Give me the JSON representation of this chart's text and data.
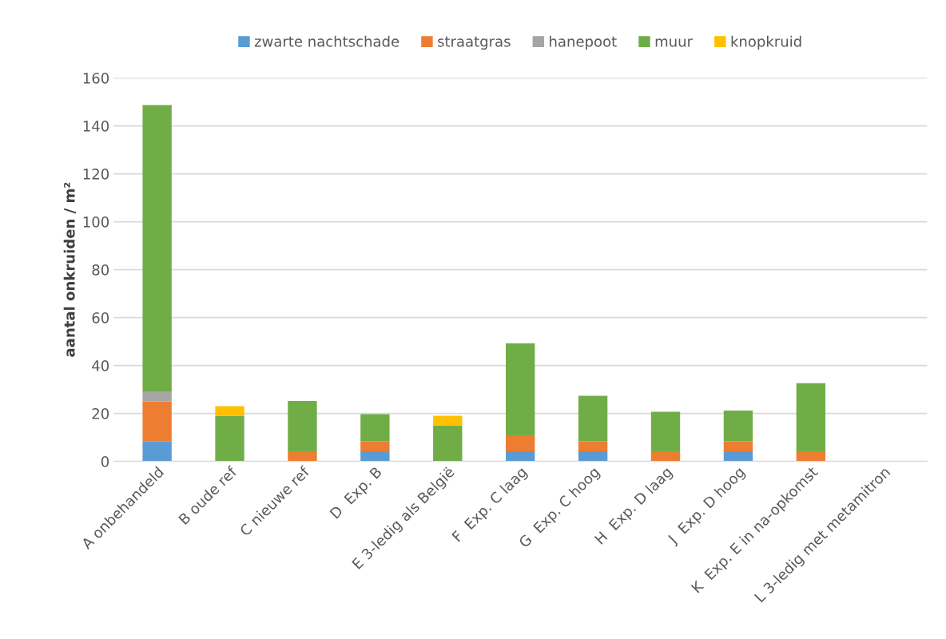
{
  "chart_data": {
    "type": "bar",
    "stacked": true,
    "ylabel": "aantal onkruiden / m²",
    "categories": [
      "A onbehandeld",
      "B oude ref",
      "C nieuwe ref",
      "D  Exp. B",
      "E 3-ledig als België",
      "F  Exp. C laag",
      "G  Exp. C hoog",
      "H  Exp. D laag",
      "J  Exp. D hoog",
      "K  Exp. E in na-opkomst",
      "L 3-ledig met metamitron"
    ],
    "series": [
      {
        "name": "zwarte nachtschade",
        "color": "#5b9bd5",
        "values": [
          8.3,
          0,
          0,
          4.2,
          0,
          4.2,
          4.2,
          0,
          4.2,
          0,
          0
        ]
      },
      {
        "name": "straatgras",
        "color": "#ed7d31",
        "values": [
          16.7,
          0,
          4.2,
          4.2,
          0,
          6.7,
          4.2,
          4.2,
          4.2,
          4.2,
          0
        ]
      },
      {
        "name": "hanepoot",
        "color": "#a5a5a5",
        "values": [
          4.2,
          0,
          0,
          0,
          0,
          0,
          0,
          0,
          0,
          0,
          0
        ]
      },
      {
        "name": "muur",
        "color": "#70ad47",
        "values": [
          119.5,
          19,
          21,
          11.3,
          15,
          38.4,
          19,
          16.5,
          12.8,
          28.4,
          0
        ]
      },
      {
        "name": "knopkruid",
        "color": "#ffc000",
        "values": [
          0,
          4,
          0,
          0,
          4,
          0,
          0,
          0,
          0,
          0,
          0
        ]
      }
    ],
    "ylim": [
      0,
      160
    ],
    "yticks": [
      0,
      20,
      40,
      60,
      80,
      100,
      120,
      140,
      160
    ],
    "grid": "y",
    "legend": "top"
  }
}
